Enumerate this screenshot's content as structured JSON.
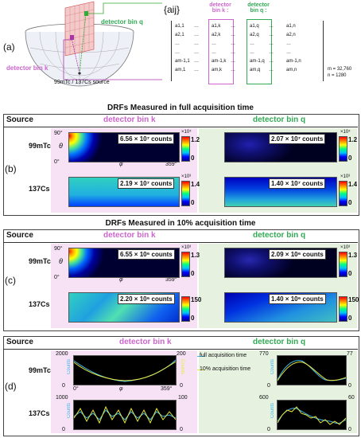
{
  "panel_labels": {
    "a": "(a)",
    "b": "(b)",
    "c": "(c)",
    "d": "(d)"
  },
  "panel_a": {
    "detector_bin_q": "detector bin q",
    "detector_bin_k": "detector bin k",
    "source_label": "99mTc / 137Cs source",
    "matrix_symbol": "{aij}",
    "col_k_label": "detector bin k :",
    "col_q_label": "detector bin q :",
    "rows": [
      [
        "a1,1",
        "…",
        "a1,k",
        "…",
        "a1,q",
        "…",
        "a1,n"
      ],
      [
        "a2,1",
        "…",
        "a2,k",
        "…",
        "a2,q",
        "…",
        "a2,n"
      ],
      [
        "…",
        "…",
        "…",
        "…",
        "…",
        "…",
        "…"
      ],
      [
        "…",
        "…",
        "…",
        "…",
        "…",
        "…",
        "…"
      ],
      [
        "am-1,1",
        "…",
        "am-1,k",
        "…",
        "am-1,q",
        "…",
        "am-1,n"
      ],
      [
        "am,1",
        "…",
        "am,k",
        "…",
        "am,q",
        "…",
        "am,n"
      ]
    ],
    "m_label": "m = 32,760",
    "n_label": "n = 1280"
  },
  "panel_b": {
    "title": "DRFs Measured in full acquisition time",
    "source_header": "Source",
    "col_k": "detector bin k",
    "col_q": "detector bin q",
    "tc_label": "99mTc",
    "cs_label": "137Cs",
    "theta_top": "90°",
    "theta": "θ",
    "phi_left": "0°",
    "phi": "φ",
    "phi_right": "359°",
    "tc_k_counts": "6.56 × 10⁷ counts",
    "tc_q_counts": "2.07 × 10⁷ counts",
    "cs_k_counts": "2.19 × 10⁷ counts",
    "cs_q_counts": "1.40 × 10⁷ counts",
    "tc_k_max": "1.2",
    "tc_k_exp": "×10⁴",
    "tc_q_max": "1.2",
    "tc_q_exp": "×10⁴",
    "cs_k_max": "1.4",
    "cs_k_exp": "×10³",
    "cs_q_max": "1.4",
    "cs_q_exp": "×10³",
    "zero": "0"
  },
  "panel_c": {
    "title": "DRFs Measured in 10% acquisition time",
    "source_header": "Source",
    "col_k": "detector bin k",
    "col_q": "detector bin q",
    "tc_label": "99mTc",
    "cs_label": "137Cs",
    "theta_top": "90°",
    "theta": "θ",
    "phi_left": "0°",
    "phi": "φ",
    "phi_right": "359°",
    "tc_k_counts": "6.55 × 10⁶ counts",
    "tc_q_counts": "2.09 × 10⁶ counts",
    "cs_k_counts": "2.20 × 10⁶ counts",
    "cs_q_counts": "1.40 × 10⁶ counts",
    "tc_k_max": "1.3",
    "tc_k_exp": "×10³",
    "tc_q_max": "1.3",
    "tc_q_exp": "×10³",
    "cs_k_max": "150",
    "cs_q_max": "150",
    "zero": "0"
  },
  "panel_d": {
    "source_header": "Source",
    "col_k": "detector bin k",
    "col_q": "detector bin q",
    "tc_label": "99mTc",
    "cs_label": "137Cs",
    "counts": "Counts",
    "legend_full": "full acquisition time",
    "legend_10": "10% acquisition time",
    "tc_k_left_max": "2000",
    "tc_k_right_max": "200",
    "tc_q_left_max": "770",
    "tc_q_right_max": "77",
    "cs_k_left_max": "1000",
    "cs_k_right_max": "100",
    "cs_q_left_max": "600",
    "cs_q_right_max": "60",
    "zero": "0",
    "phi_left": "0°",
    "phi": "φ",
    "phi_right": "359°"
  },
  "colors": {
    "pink_bg": "#f6e2f4",
    "green_bg": "#e6f1e0",
    "full_line": "#3fb6e8",
    "ten_line": "#e8e840"
  }
}
